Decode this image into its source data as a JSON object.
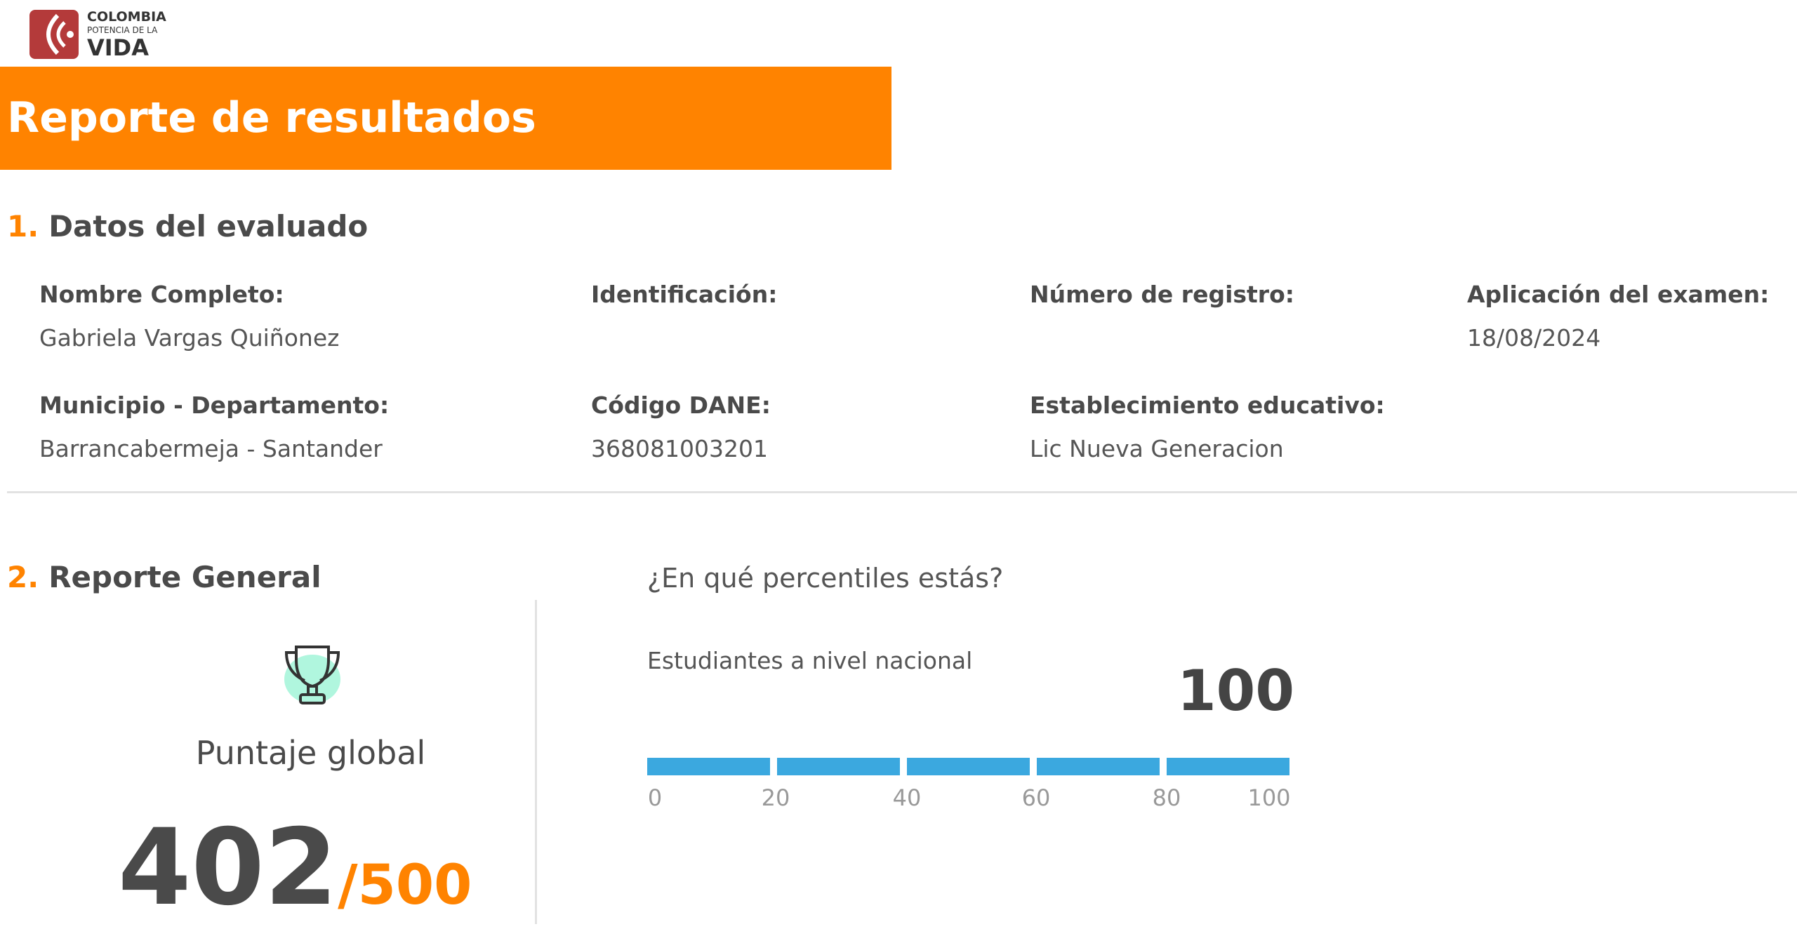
{
  "logo": {
    "line1": "COLOMBIA",
    "line2": "POTENCIA DE LA",
    "line3": "VIDA",
    "brand_color": "#b43a3a"
  },
  "header": {
    "title": "Reporte de resultados",
    "accent": "#ff8300"
  },
  "section1": {
    "number": "1.",
    "title": "Datos del evaluado",
    "fields": [
      {
        "label": "Nombre Completo:",
        "value": "Gabriela  Vargas Quiñonez"
      },
      {
        "label": "Identificación:",
        "value": ""
      },
      {
        "label": "Número de registro:",
        "value": ""
      },
      {
        "label": "Aplicación del examen:",
        "value": "18/08/2024"
      },
      {
        "label": "Municipio - Departamento:",
        "value": "Barrancabermeja -  Santander"
      },
      {
        "label": "Código DANE:",
        "value": "368081003201"
      },
      {
        "label": "Establecimiento educativo:",
        "value": "Lic Nueva Generacion"
      }
    ]
  },
  "section2": {
    "number": "2.",
    "title": "Reporte General",
    "trophy_icon": "trophy-icon",
    "score_label": "Puntaje global",
    "score": "402",
    "score_max": "/500",
    "percentile_question": "¿En qué percentiles estás?",
    "percentile_group": "Estudiantes a nivel nacional",
    "percentile_value": "100",
    "bar_color": "#3ba8df",
    "ticks": [
      "0",
      "20",
      "40",
      "60",
      "80",
      "100"
    ]
  }
}
